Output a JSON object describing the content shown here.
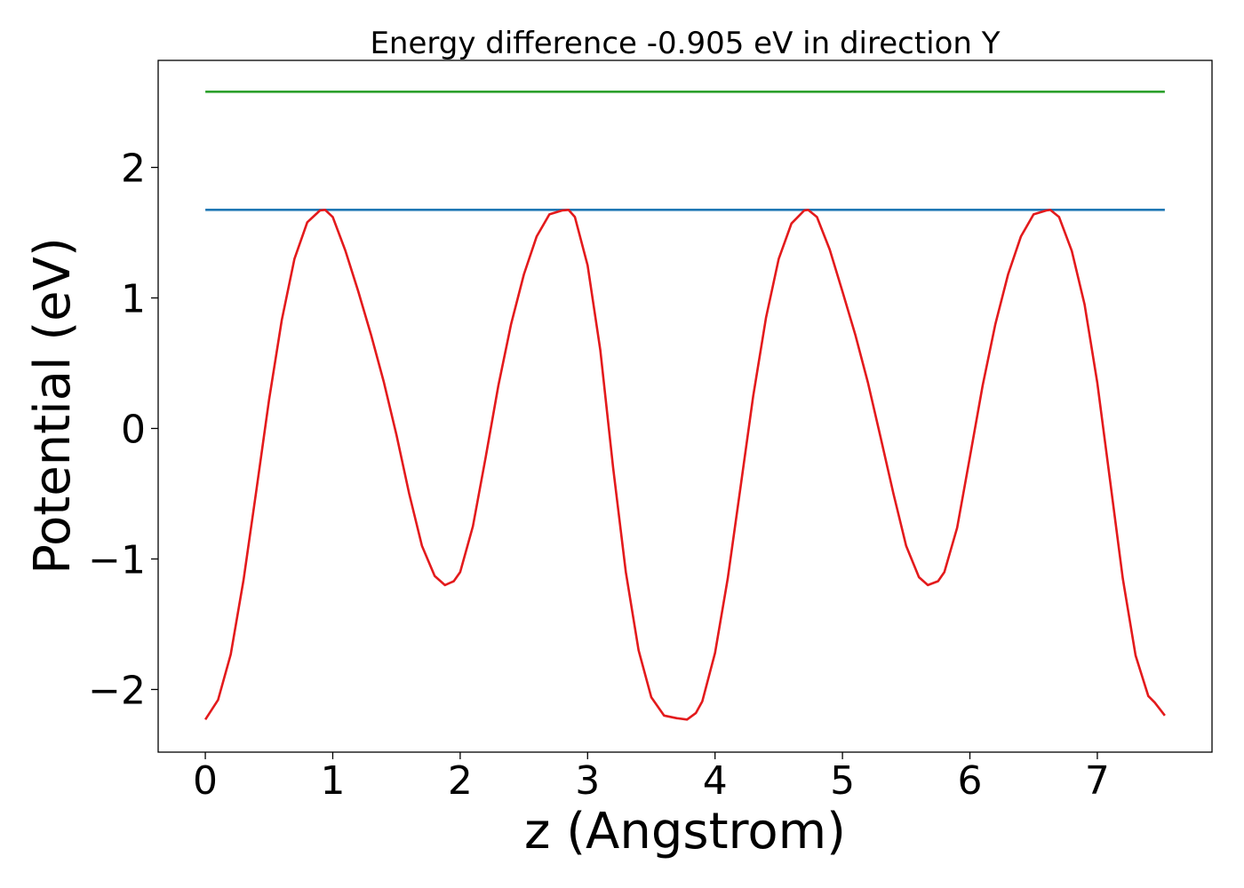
{
  "chart_data": {
    "type": "line",
    "title": "Energy difference -0.905 eV in direction Y",
    "xlabel": "z (Angstrom)",
    "ylabel": "Potential (eV)",
    "xlim": [
      -0.37,
      7.9
    ],
    "ylim": [
      -2.48,
      2.82
    ],
    "grid": false,
    "x_ticks": [
      0,
      1,
      2,
      3,
      4,
      5,
      6,
      7
    ],
    "y_ticks": [
      -2,
      -1,
      0,
      1,
      2
    ],
    "x_tick_labels": [
      "0",
      "1",
      "2",
      "3",
      "4",
      "5",
      "6",
      "7"
    ],
    "y_tick_labels": [
      "−2",
      "−1",
      "0",
      "1",
      "2"
    ],
    "series": [
      {
        "color": "#2ca02c",
        "x": [
          0,
          7.53
        ],
        "y": [
          2.58,
          2.58
        ]
      },
      {
        "color": "#1f77b4",
        "x": [
          0,
          7.53
        ],
        "y": [
          1.675,
          1.675
        ]
      },
      {
        "color": "#e31a1c",
        "x": [
          0,
          0.1,
          0.2,
          0.3,
          0.4,
          0.5,
          0.6,
          0.7,
          0.8,
          0.9,
          0.94,
          1.0,
          1.1,
          1.2,
          1.3,
          1.4,
          1.5,
          1.6,
          1.7,
          1.8,
          1.88,
          1.95,
          2.0,
          2.1,
          2.2,
          2.3,
          2.4,
          2.5,
          2.6,
          2.7,
          2.8,
          2.85,
          2.9,
          3.0,
          3.1,
          3.2,
          3.3,
          3.4,
          3.5,
          3.6,
          3.7,
          3.78,
          3.85,
          3.9,
          4.0,
          4.1,
          4.2,
          4.3,
          4.4,
          4.5,
          4.6,
          4.7,
          4.73,
          4.8,
          4.9,
          5.0,
          5.1,
          5.2,
          5.3,
          5.4,
          5.5,
          5.6,
          5.67,
          5.75,
          5.8,
          5.9,
          6.0,
          6.1,
          6.2,
          6.3,
          6.4,
          6.5,
          6.6,
          6.63,
          6.7,
          6.8,
          6.9,
          7.0,
          7.1,
          7.2,
          7.3,
          7.4,
          7.45,
          7.53
        ],
        "y": [
          -2.23,
          -2.08,
          -1.73,
          -1.16,
          -0.48,
          0.22,
          0.83,
          1.3,
          1.58,
          1.67,
          1.675,
          1.62,
          1.36,
          1.05,
          0.72,
          0.36,
          -0.05,
          -0.5,
          -0.9,
          -1.13,
          -1.2,
          -1.17,
          -1.1,
          -0.75,
          -0.22,
          0.33,
          0.8,
          1.18,
          1.47,
          1.64,
          1.67,
          1.675,
          1.62,
          1.25,
          0.6,
          -0.3,
          -1.1,
          -1.7,
          -2.06,
          -2.2,
          -2.22,
          -2.23,
          -2.18,
          -2.09,
          -1.72,
          -1.15,
          -0.45,
          0.25,
          0.85,
          1.3,
          1.57,
          1.67,
          1.675,
          1.62,
          1.37,
          1.05,
          0.72,
          0.35,
          -0.07,
          -0.5,
          -0.9,
          -1.14,
          -1.2,
          -1.17,
          -1.1,
          -0.76,
          -0.22,
          0.33,
          0.8,
          1.18,
          1.47,
          1.64,
          1.67,
          1.675,
          1.62,
          1.36,
          0.95,
          0.35,
          -0.4,
          -1.15,
          -1.74,
          -2.05,
          -2.1,
          -2.2
        ]
      }
    ]
  }
}
